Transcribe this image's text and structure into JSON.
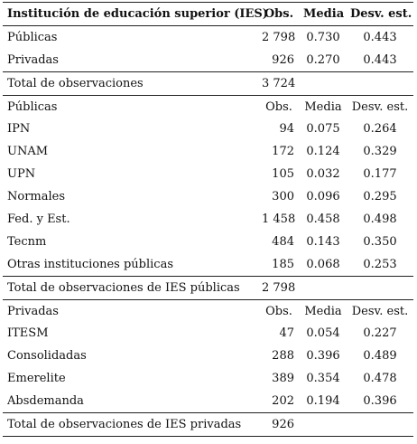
{
  "header": {
    "col1": "Institución de educación superior (IES)",
    "col2": "Obs.",
    "col3": "Media",
    "col4": "Desv. est."
  },
  "summary": [
    {
      "label": "Públicas",
      "obs": "2 798",
      "media": "0.730",
      "desv": "0.443"
    },
    {
      "label": "Privadas",
      "obs": "926",
      "media": "0.270",
      "desv": "0.443"
    }
  ],
  "summary_total": {
    "label": "Total de observaciones",
    "obs": "3 724"
  },
  "publicas_section": {
    "header": {
      "label": "Públicas",
      "obs": "Obs.",
      "media": "Media",
      "desv": "Desv. est."
    },
    "rows": [
      {
        "label": "IPN",
        "obs": "94",
        "media": "0.075",
        "desv": "0.264"
      },
      {
        "label": "UNAM",
        "obs": "172",
        "media": "0.124",
        "desv": "0.329"
      },
      {
        "label": "UPN",
        "obs": "105",
        "media": "0.032",
        "desv": "0.177"
      },
      {
        "label": "Normales",
        "obs": "300",
        "media": "0.096",
        "desv": "0.295"
      },
      {
        "label": "Fed. y Est.",
        "obs": "1 458",
        "media": "0.458",
        "desv": "0.498"
      },
      {
        "label": "Tecnm",
        "obs": "484",
        "media": "0.143",
        "desv": "0.350"
      },
      {
        "label": "Otras instituciones públicas",
        "obs": "185",
        "media": "0.068",
        "desv": "0.253"
      }
    ],
    "total": {
      "label": "Total de observaciones de IES públicas",
      "obs": "2 798"
    }
  },
  "privadas_section": {
    "header": {
      "label": "Privadas",
      "obs": "Obs.",
      "media": "Media",
      "desv": "Desv. est."
    },
    "rows": [
      {
        "label": "ITESM",
        "obs": "47",
        "media": "0.054",
        "desv": "0.227"
      },
      {
        "label": "Consolidadas",
        "obs": "288",
        "media": "0.396",
        "desv": "0.489"
      },
      {
        "label": "Emerelite",
        "obs": "389",
        "media": "0.354",
        "desv": "0.478"
      },
      {
        "label": "Absdemanda",
        "obs": "202",
        "media": "0.194",
        "desv": "0.396"
      }
    ],
    "total": {
      "label": "Total de observaciones de IES privadas",
      "obs": "926"
    }
  }
}
